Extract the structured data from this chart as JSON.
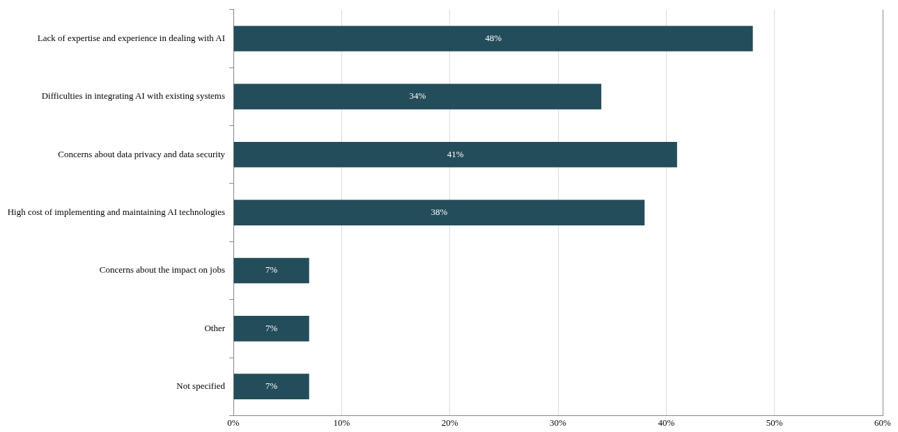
{
  "chart_data": {
    "type": "bar",
    "orientation": "horizontal",
    "categories": [
      "Lack of expertise and experience in dealing with AI",
      "Difficulties in integrating AI with existing systems",
      "Concerns about data privacy and data security",
      "High cost of implementing and maintaining AI technologies",
      "Concerns about the impact on jobs",
      "Other",
      "Not specified"
    ],
    "values": [
      48,
      34,
      41,
      38,
      7,
      7,
      7
    ],
    "color": "#234d5a",
    "xlim": [
      0,
      60
    ],
    "xticks": [
      {
        "value": 0,
        "label": "0%"
      },
      {
        "value": 10,
        "label": "10%"
      },
      {
        "value": 20,
        "label": "20%"
      },
      {
        "value": 30,
        "label": "30%"
      },
      {
        "value": 40,
        "label": "40%"
      },
      {
        "value": 50,
        "label": "50%"
      },
      {
        "value": 60,
        "label": "60%"
      }
    ],
    "value_labels": [
      "48%",
      "34%",
      "41%",
      "38%",
      "7%",
      "7%",
      "7%"
    ],
    "grid": "x",
    "legend": false
  }
}
